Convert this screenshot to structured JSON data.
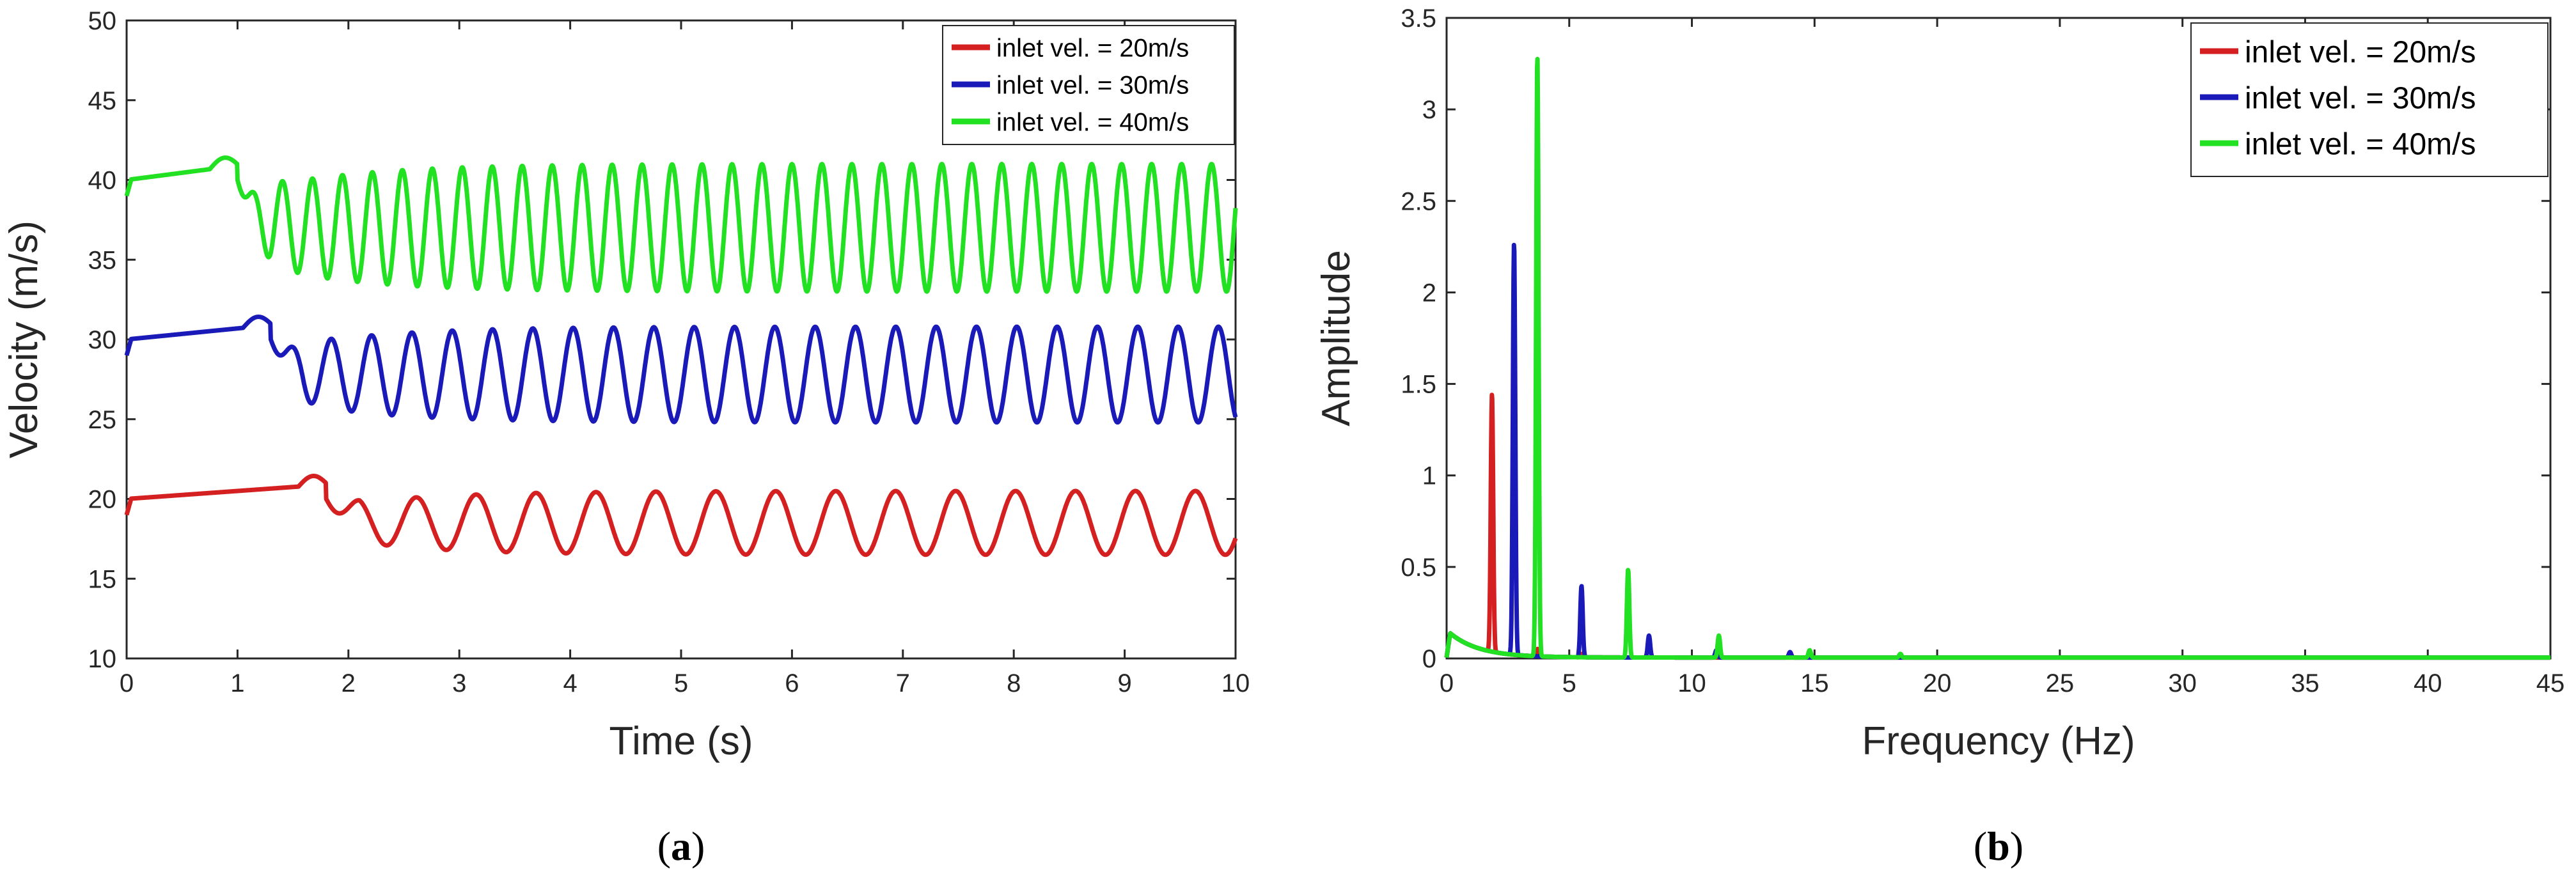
{
  "chart_data": [
    {
      "type": "line",
      "panel_label": "(a)",
      "caption_paren_open": "(",
      "caption_letter": "a",
      "caption_paren_close": ")",
      "xlabel": "Time (s)",
      "ylabel": "Velocity (m/s)",
      "xlim": [
        0,
        10
      ],
      "ylim": [
        10,
        50
      ],
      "xticks": [
        "0",
        "1",
        "2",
        "3",
        "4",
        "5",
        "6",
        "7",
        "8",
        "9",
        "10"
      ],
      "yticks": [
        "10",
        "15",
        "20",
        "25",
        "30",
        "35",
        "40",
        "45",
        "50"
      ],
      "legend_position": "top-right",
      "series": [
        {
          "name": "inlet vel. = 20m/s",
          "color": "#d42020",
          "baseline": 20,
          "steady_mean": 18.5,
          "steady_amplitude": 2.0,
          "frequency_hz": 1.85,
          "transition_time_s": 1.8
        },
        {
          "name": "inlet vel. = 30m/s",
          "color": "#1a1ab8",
          "baseline": 30,
          "steady_mean": 27.8,
          "steady_amplitude": 3.0,
          "frequency_hz": 2.75,
          "transition_time_s": 1.3
        },
        {
          "name": "inlet vel. = 40m/s",
          "color": "#22e022",
          "baseline": 40,
          "steady_mean": 37.0,
          "steady_amplitude": 4.0,
          "frequency_hz": 3.7,
          "transition_time_s": 1.0
        }
      ]
    },
    {
      "type": "line",
      "panel_label": "(b)",
      "caption_paren_open": "(",
      "caption_letter": "b",
      "caption_paren_close": ")",
      "xlabel": "Frequency (Hz)",
      "ylabel": "Amplitude",
      "xlim": [
        0,
        45
      ],
      "ylim": [
        0,
        3.5
      ],
      "xticks": [
        "0",
        "5",
        "10",
        "15",
        "20",
        "25",
        "30",
        "35",
        "40",
        "45"
      ],
      "yticks": [
        "0",
        "0.5",
        "1",
        "1.5",
        "2",
        "2.5",
        "3",
        "3.5"
      ],
      "legend_position": "top-right",
      "series": [
        {
          "name": "inlet vel. = 20m/s",
          "color": "#d42020",
          "peaks": [
            [
              1.85,
              1.41
            ],
            [
              3.7,
              0.04
            ],
            [
              5.55,
              0.02
            ]
          ]
        },
        {
          "name": "inlet vel. = 30m/s",
          "color": "#1a1ab8",
          "peaks": [
            [
              2.75,
              2.25
            ],
            [
              5.5,
              0.39
            ],
            [
              8.25,
              0.12
            ],
            [
              11.0,
              0.04
            ],
            [
              14.0,
              0.03
            ]
          ]
        },
        {
          "name": "inlet vel. = 40m/s",
          "color": "#22e022",
          "peaks": [
            [
              3.7,
              3.28
            ],
            [
              7.4,
              0.48
            ],
            [
              11.1,
              0.12
            ],
            [
              14.8,
              0.04
            ],
            [
              18.5,
              0.02
            ]
          ]
        }
      ]
    }
  ]
}
